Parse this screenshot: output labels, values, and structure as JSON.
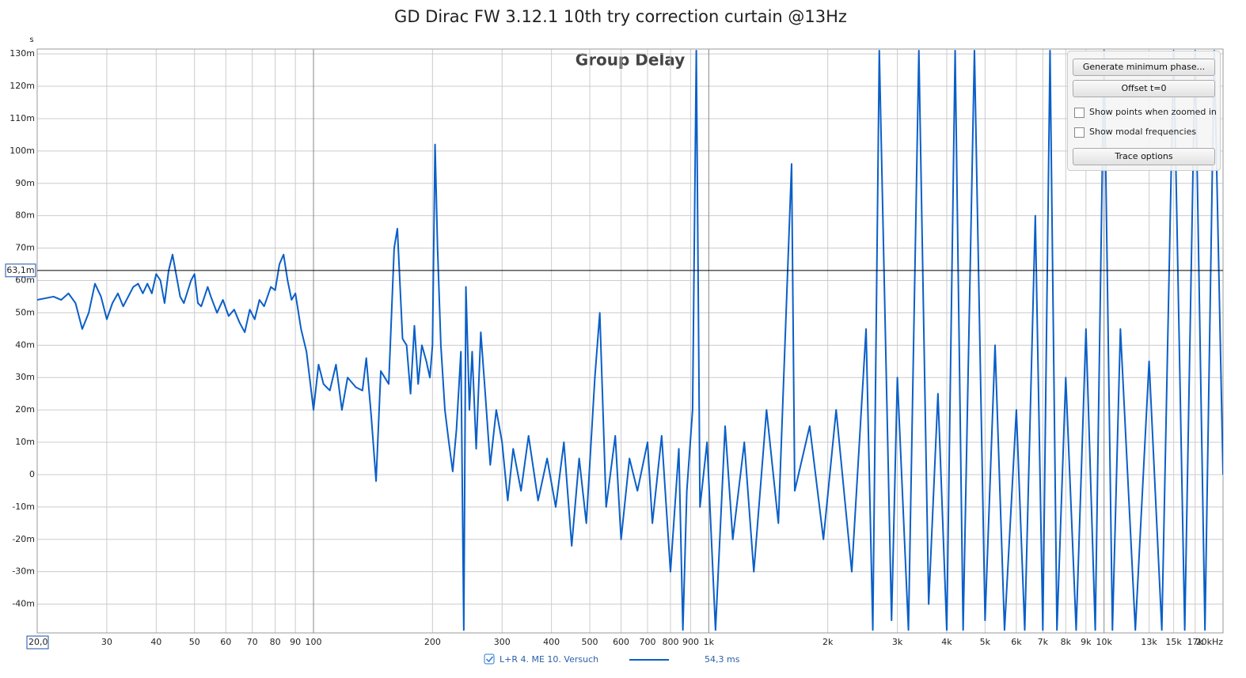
{
  "chart_data": {
    "type": "line",
    "title": "GD Dirac FW 3.12.1 10th try correction curtain @13Hz",
    "subtitle": "Group Delay",
    "y_unit": "s",
    "xscale": "log",
    "grid": true,
    "xlim": [
      20,
      20000
    ],
    "ylim": [
      -0.0489,
      0.1315
    ],
    "xticks": [
      {
        "value": 20,
        "label": "20,0"
      },
      30,
      40,
      50,
      60,
      70,
      80,
      90,
      100,
      200,
      300,
      400,
      500,
      600,
      700,
      800,
      900,
      {
        "value": 1000,
        "label": "1k"
      },
      {
        "value": 2000,
        "label": "2k"
      },
      {
        "value": 3000,
        "label": "3k"
      },
      {
        "value": 4000,
        "label": "4k"
      },
      {
        "value": 5000,
        "label": "5k"
      },
      {
        "value": 6000,
        "label": "6k"
      },
      {
        "value": 7000,
        "label": "7k"
      },
      {
        "value": 8000,
        "label": "8k"
      },
      {
        "value": 9000,
        "label": "9k"
      },
      {
        "value": 10000,
        "label": "10k"
      },
      {
        "value": 13000,
        "label": "13k"
      },
      {
        "value": 15000,
        "label": "15k"
      },
      {
        "value": 17000,
        "label": "17k"
      },
      {
        "value": 20000,
        "label": "20kHz"
      }
    ],
    "yticks": [
      {
        "value": 0.13,
        "label": "130m"
      },
      {
        "value": 0.12,
        "label": "120m"
      },
      {
        "value": 0.11,
        "label": "110m"
      },
      {
        "value": 0.1,
        "label": "100m"
      },
      {
        "value": 0.09,
        "label": "90m"
      },
      {
        "value": 0.08,
        "label": "80m"
      },
      {
        "value": 0.07,
        "label": "70m"
      },
      {
        "value": 0.06,
        "label": "60m"
      },
      {
        "value": 0.05,
        "label": "50m"
      },
      {
        "value": 0.04,
        "label": "40m"
      },
      {
        "value": 0.03,
        "label": "30m"
      },
      {
        "value": 0.02,
        "label": "20m"
      },
      {
        "value": 0.01,
        "label": "10m"
      },
      0,
      {
        "value": -0.01,
        "label": "-10m"
      },
      {
        "value": -0.02,
        "label": "-20m"
      },
      {
        "value": -0.03,
        "label": "-30m"
      },
      {
        "value": -0.04,
        "label": "-40m"
      }
    ],
    "cursor": {
      "value": 0.0631,
      "label": "63,1m"
    },
    "series": [
      {
        "name": "L+R 4. ME 10. Versuch",
        "legend_value": "54,3 ms",
        "color": "#0a5fc8",
        "x": [
          20,
          22,
          23,
          24,
          25,
          26,
          27,
          28,
          29,
          30,
          31,
          32,
          33,
          35,
          36,
          37,
          38,
          39,
          40,
          41,
          42,
          43,
          44,
          46,
          47,
          49,
          50,
          51,
          52,
          54,
          55,
          57,
          59,
          61,
          63,
          65,
          67,
          69,
          71,
          73,
          75,
          78,
          80,
          82,
          84,
          86,
          88,
          90,
          93,
          96,
          100,
          103,
          106,
          110,
          114,
          118,
          122,
          128,
          133,
          136,
          140,
          144,
          148,
          155,
          160,
          163,
          168,
          172,
          176,
          180,
          184,
          188,
          193,
          197,
          200,
          203,
          206,
          210,
          215,
          220,
          225,
          230,
          236,
          240,
          243,
          248,
          252,
          258,
          265,
          272,
          280,
          290,
          300,
          310,
          320,
          335,
          350,
          370,
          390,
          410,
          430,
          450,
          470,
          490,
          515,
          530,
          550,
          580,
          600,
          630,
          660,
          700,
          720,
          760,
          800,
          840,
          860,
          880,
          910,
          930,
          950,
          990,
          1040,
          1100,
          1150,
          1230,
          1300,
          1400,
          1500,
          1620,
          1650,
          1800,
          1950,
          2100,
          2300,
          2500,
          2600,
          2700,
          2900,
          3000,
          3200,
          3400,
          3600,
          3800,
          4000,
          4200,
          4400,
          4700,
          5000,
          5300,
          5600,
          6000,
          6300,
          6700,
          7000,
          7300,
          7600,
          8000,
          8500,
          9000,
          9500,
          10000,
          10500,
          11000,
          12000,
          13000,
          14000,
          15000,
          16000,
          17000,
          18000,
          19000,
          20000
        ],
        "values": [
          0.054,
          0.055,
          0.054,
          0.056,
          0.053,
          0.045,
          0.05,
          0.059,
          0.055,
          0.048,
          0.053,
          0.056,
          0.052,
          0.058,
          0.059,
          0.056,
          0.059,
          0.056,
          0.062,
          0.06,
          0.053,
          0.063,
          0.068,
          0.055,
          0.053,
          0.06,
          0.062,
          0.053,
          0.052,
          0.058,
          0.055,
          0.05,
          0.054,
          0.049,
          0.051,
          0.047,
          0.044,
          0.051,
          0.048,
          0.054,
          0.052,
          0.058,
          0.057,
          0.065,
          0.068,
          0.06,
          0.054,
          0.056,
          0.045,
          0.038,
          0.02,
          0.034,
          0.028,
          0.026,
          0.034,
          0.02,
          0.03,
          0.027,
          0.026,
          0.036,
          0.018,
          -0.002,
          0.032,
          0.028,
          0.07,
          0.076,
          0.042,
          0.04,
          0.025,
          0.046,
          0.028,
          0.04,
          0.035,
          0.03,
          0.04,
          0.102,
          0.07,
          0.04,
          0.02,
          0.01,
          0.001,
          0.014,
          0.038,
          -0.048,
          0.058,
          0.02,
          0.038,
          0.008,
          0.044,
          0.025,
          0.003,
          0.02,
          0.01,
          -0.008,
          0.008,
          -0.005,
          0.012,
          -0.008,
          0.005,
          -0.01,
          0.01,
          -0.022,
          0.005,
          -0.015,
          0.03,
          0.05,
          -0.01,
          0.012,
          -0.02,
          0.005,
          -0.005,
          0.01,
          -0.015,
          0.012,
          -0.03,
          0.008,
          -0.048,
          -0.005,
          0.02,
          0.131,
          -0.01,
          0.01,
          -0.048,
          0.015,
          -0.02,
          0.01,
          -0.03,
          0.02,
          -0.015,
          0.096,
          -0.005,
          0.015,
          -0.02,
          0.02,
          -0.03,
          0.045,
          -0.048,
          0.131,
          -0.045,
          0.03,
          -0.048,
          0.131,
          -0.04,
          0.025,
          -0.048,
          0.131,
          -0.048,
          0.131,
          -0.045,
          0.04,
          -0.048,
          0.02,
          -0.048,
          0.08,
          -0.048,
          0.131,
          -0.048,
          0.03,
          -0.048,
          0.045,
          -0.048,
          0.131,
          -0.048,
          0.045,
          -0.048,
          0.035,
          -0.048,
          0.131,
          -0.048,
          0.131,
          -0.048,
          0.131,
          0.0
        ]
      }
    ]
  },
  "controls": {
    "buttons": [
      "Generate minimum phase...",
      "Offset t=0",
      "Trace options"
    ],
    "checkboxes": [
      "Show points when zoomed in",
      "Show modal frequencies"
    ]
  }
}
